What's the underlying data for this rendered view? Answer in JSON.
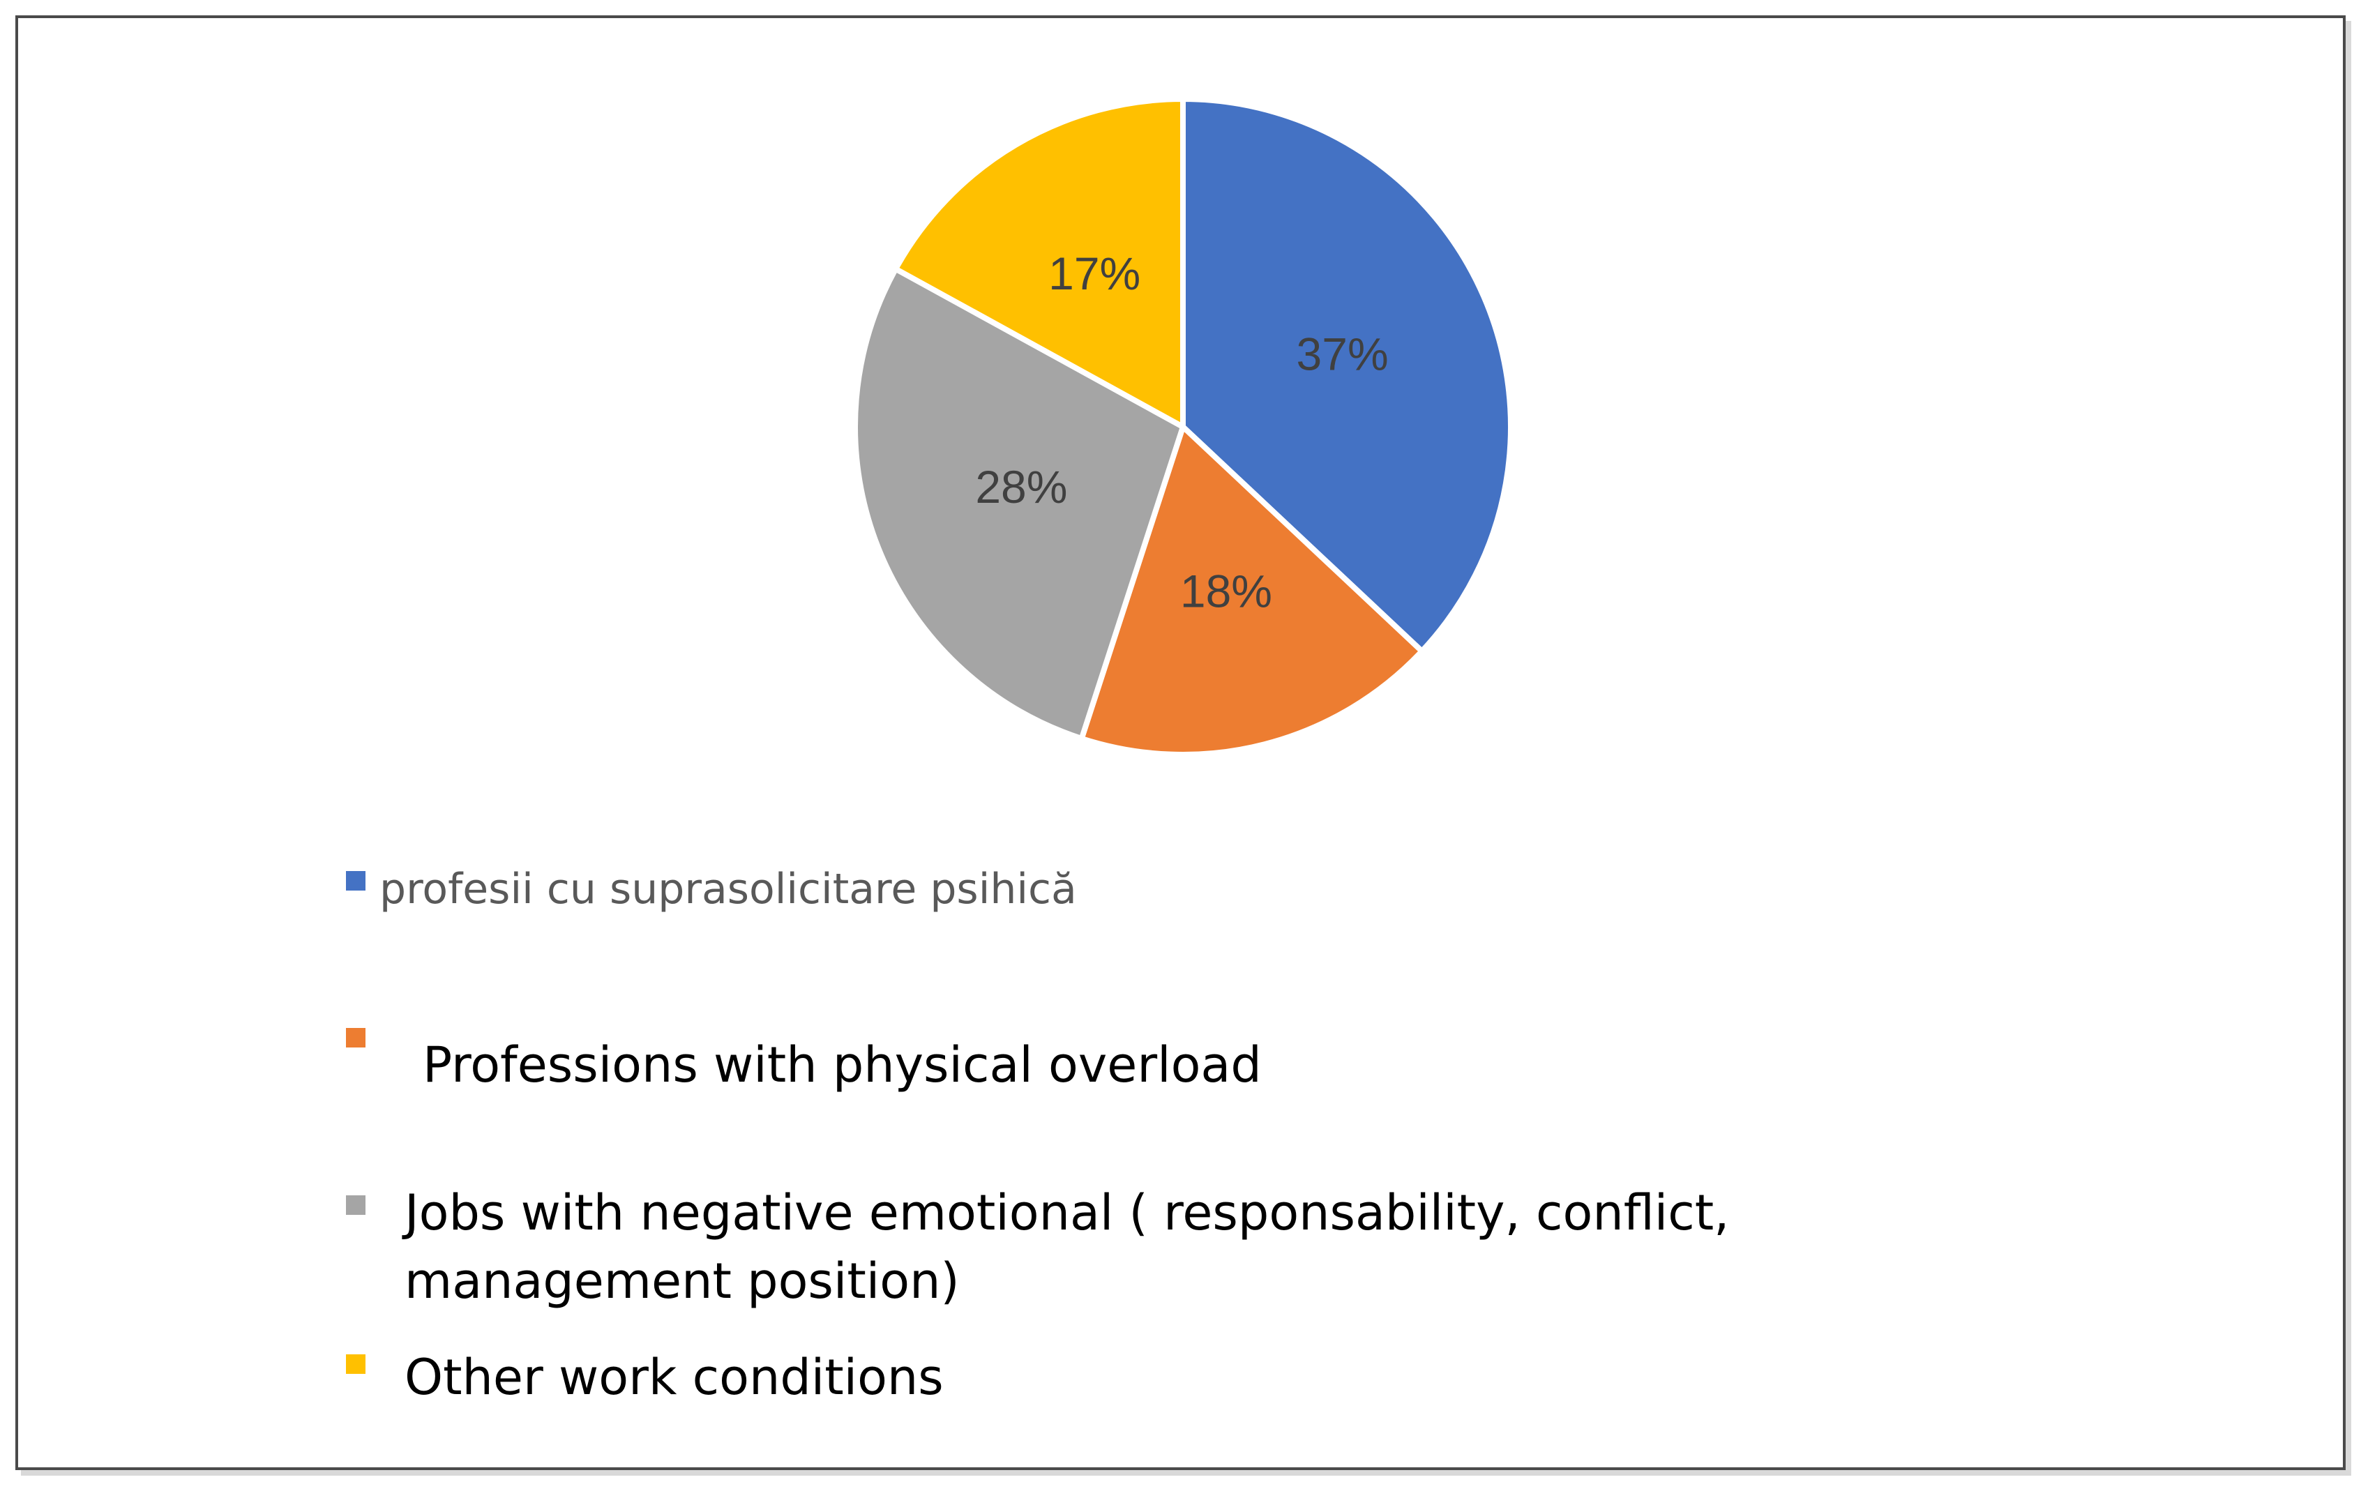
{
  "chart_data": {
    "type": "pie",
    "title": "",
    "slices": [
      {
        "label": "profesii cu suprasolicitare psihică",
        "value": 37,
        "display": "37%",
        "color": "#4472C4"
      },
      {
        "label": "Professions with physical overload",
        "value": 18,
        "display": "18%",
        "color": "#ED7D31"
      },
      {
        "label": "Jobs with negative emotional ( responsability, conflict, management position)",
        "value": 28,
        "display": "28%",
        "color": "#A5A5A5"
      },
      {
        "label": "Other work conditions",
        "value": 17,
        "display": "17%",
        "color": "#FFC000"
      }
    ],
    "legend_position": "bottom",
    "start_angle_deg": 0,
    "direction": "clockwise"
  },
  "legend": {
    "item_0": "profesii cu suprasolicitare psihică",
    "item_1": "Professions with physical overload",
    "item_2_line1": "Jobs with negative emotional ( responsability, conflict,",
    "item_2_line2": "management position)",
    "item_3": "Other work conditions"
  }
}
